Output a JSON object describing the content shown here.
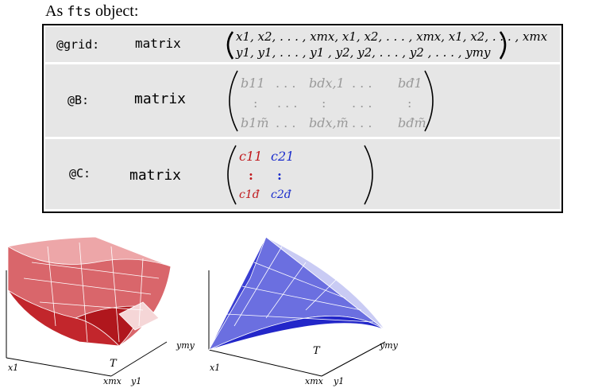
{
  "heading": {
    "prefix": "As ",
    "code": "fts",
    "suffix": " object:"
  },
  "rows": [
    {
      "slot": "@grid:",
      "type": "matrix",
      "lines": [
        "x1, x2, . . . , xmx, x1, x2, . . . , xmx, x1, x2, . . . , xmx",
        "y1, y1, . . . , y1 , y2, y2, . . . , y2 ,      . . .      , ymy"
      ]
    },
    {
      "slot": "@B:",
      "type": "matrix",
      "top_row": [
        "b11",
        ". . .",
        "bdx,1",
        ". . .",
        "bđ1"
      ],
      "mid_row": [
        ":",
        ". . .",
        ":",
        ". . .",
        ":"
      ],
      "bottom_row": [
        "b1m̃",
        ". . .",
        "bdx,m̃",
        ". . .",
        "bđm̃"
      ]
    },
    {
      "slot": "@C:",
      "type": "matrix",
      "top_row": [
        "c11",
        "c21"
      ],
      "mid_row": [
        ":",
        ":"
      ],
      "bottom_row": [
        "c1đ",
        "c2đ"
      ]
    }
  ],
  "plots": [
    {
      "surface_color": "#c83035",
      "labels": {
        "x_start": "x1",
        "x_end": "xmx",
        "y_start": "y1",
        "y_end": "ymy",
        "domain": "T"
      }
    },
    {
      "surface_color": "#2a2fd0",
      "labels": {
        "x_start": "x1",
        "x_end": "xmx",
        "y_start": "y1",
        "y_end": "ymy",
        "domain": "T"
      }
    }
  ]
}
